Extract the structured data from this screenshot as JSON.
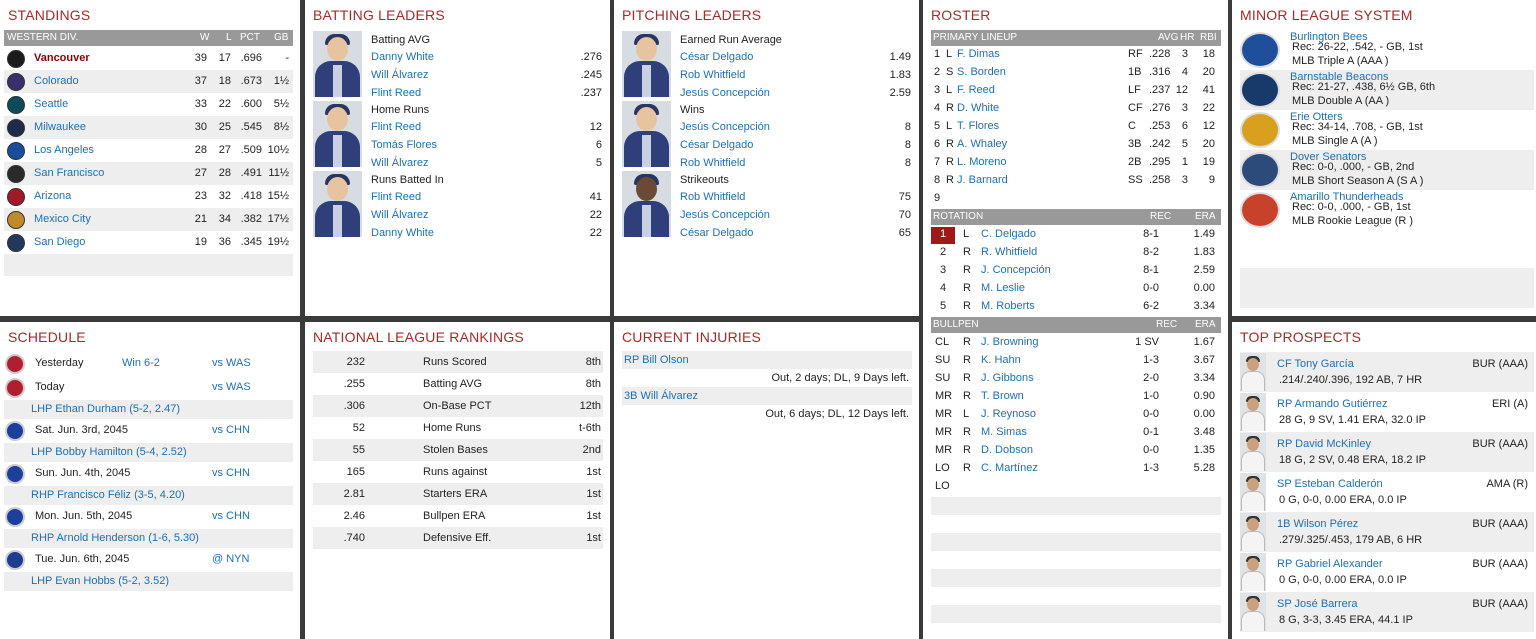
{
  "standings": {
    "title": "STANDINGS",
    "division": "WESTERN DIV.",
    "cols": [
      "W",
      "L",
      "PCT",
      "GB"
    ],
    "rows": [
      {
        "team": "Vancouver",
        "w": "39",
        "l": "17",
        "pct": ".696",
        "gb": "-",
        "logo": "vancouver-logo",
        "color": "#1b1b1b"
      },
      {
        "team": "Colorado",
        "w": "37",
        "l": "18",
        "pct": ".673",
        "gb": "1½",
        "logo": "colorado-logo",
        "color": "#3a2e6b"
      },
      {
        "team": "Seattle",
        "w": "33",
        "l": "22",
        "pct": ".600",
        "gb": "5½",
        "logo": "seattle-logo",
        "color": "#0b4b5c"
      },
      {
        "team": "Milwaukee",
        "w": "30",
        "l": "25",
        "pct": ".545",
        "gb": "8½",
        "logo": "milwaukee-logo",
        "color": "#1d2a4a"
      },
      {
        "team": "Los Angeles",
        "w": "28",
        "l": "27",
        "pct": ".509",
        "gb": "10½",
        "logo": "los-angeles-logo",
        "color": "#1a4d9c"
      },
      {
        "team": "San Francisco",
        "w": "27",
        "l": "28",
        "pct": ".491",
        "gb": "11½",
        "logo": "san-francisco-logo",
        "color": "#2a2a2a"
      },
      {
        "team": "Arizona",
        "w": "23",
        "l": "32",
        "pct": ".418",
        "gb": "15½",
        "logo": "arizona-logo",
        "color": "#a3182b"
      },
      {
        "team": "Mexico City",
        "w": "21",
        "l": "34",
        "pct": ".382",
        "gb": "17½",
        "logo": "mexico-city-logo",
        "color": "#c08a2a"
      },
      {
        "team": "San Diego",
        "w": "19",
        "l": "36",
        "pct": ".345",
        "gb": "19½",
        "logo": "san-diego-logo",
        "color": "#24375e"
      }
    ]
  },
  "batting": {
    "title": "BATTING LEADERS",
    "groups": [
      {
        "label": "Batting AVG",
        "rows": [
          {
            "name": "Danny White",
            "val": ".276"
          },
          {
            "name": "Will Álvarez",
            "val": ".245"
          },
          {
            "name": "Flint Reed",
            "val": ".237"
          }
        ]
      },
      {
        "label": "Home Runs",
        "rows": [
          {
            "name": "Flint Reed",
            "val": "12"
          },
          {
            "name": "Tomás Flores",
            "val": "6"
          },
          {
            "name": "Will Álvarez",
            "val": "5"
          }
        ]
      },
      {
        "label": "Runs Batted In",
        "rows": [
          {
            "name": "Flint Reed",
            "val": "41"
          },
          {
            "name": "Will Álvarez",
            "val": "22"
          },
          {
            "name": "Danny White",
            "val": "22"
          }
        ]
      }
    ]
  },
  "pitching": {
    "title": "PITCHING LEADERS",
    "groups": [
      {
        "label": "Earned Run Average",
        "rows": [
          {
            "name": "César Delgado",
            "val": "1.49"
          },
          {
            "name": "Rob Whitfield",
            "val": "1.83"
          },
          {
            "name": "Jesús Concepción",
            "val": "2.59"
          }
        ]
      },
      {
        "label": "Wins",
        "rows": [
          {
            "name": "Jesús Concepción",
            "val": "8"
          },
          {
            "name": "César Delgado",
            "val": "8"
          },
          {
            "name": "Rob Whitfield",
            "val": "8"
          }
        ]
      },
      {
        "label": "Strikeouts",
        "rows": [
          {
            "name": "Rob Whitfield",
            "val": "75"
          },
          {
            "name": "Jesús Concepción",
            "val": "70"
          },
          {
            "name": "César Delgado",
            "val": "65"
          }
        ]
      }
    ]
  },
  "roster": {
    "title": "ROSTER",
    "lineup_header": "PRIMARY LINEUP",
    "lineup_cols": [
      "AVG",
      "HR",
      "RBI"
    ],
    "lineup": [
      {
        "n": "1",
        "h": "L",
        "name": "F. Dimas",
        "pos": "RF",
        "avg": ".228",
        "hr": "3",
        "rbi": "18"
      },
      {
        "n": "2",
        "h": "S",
        "name": "S. Borden",
        "pos": "1B",
        "avg": ".316",
        "hr": "4",
        "rbi": "20"
      },
      {
        "n": "3",
        "h": "L",
        "name": "F. Reed",
        "pos": "LF",
        "avg": ".237",
        "hr": "12",
        "rbi": "41"
      },
      {
        "n": "4",
        "h": "R",
        "name": "D. White",
        "pos": "CF",
        "avg": ".276",
        "hr": "3",
        "rbi": "22"
      },
      {
        "n": "5",
        "h": "L",
        "name": "T. Flores",
        "pos": "C",
        "avg": ".253",
        "hr": "6",
        "rbi": "12"
      },
      {
        "n": "6",
        "h": "R",
        "name": "A. Whaley",
        "pos": "3B",
        "avg": ".242",
        "hr": "5",
        "rbi": "20"
      },
      {
        "n": "7",
        "h": "R",
        "name": "L. Moreno",
        "pos": "2B",
        "avg": ".295",
        "hr": "1",
        "rbi": "19"
      },
      {
        "n": "8",
        "h": "R",
        "name": "J. Barnard",
        "pos": "SS",
        "avg": ".258",
        "hr": "3",
        "rbi": "9"
      },
      {
        "n": "9",
        "h": "",
        "name": "",
        "pos": "",
        "avg": "",
        "hr": "",
        "rbi": ""
      }
    ],
    "rotation_header": "ROTATION",
    "rotation_cols": [
      "REC",
      "ERA"
    ],
    "rotation": [
      {
        "n": "1",
        "h": "L",
        "name": "C. Delgado",
        "rec": "8-1",
        "era": "1.49"
      },
      {
        "n": "2",
        "h": "R",
        "name": "R. Whitfield",
        "rec": "8-2",
        "era": "1.83"
      },
      {
        "n": "3",
        "h": "R",
        "name": "J. Concepción",
        "rec": "8-1",
        "era": "2.59"
      },
      {
        "n": "4",
        "h": "R",
        "name": "M. Leslie",
        "rec": "0-0",
        "era": "0.00"
      },
      {
        "n": "5",
        "h": "R",
        "name": "M. Roberts",
        "rec": "6-2",
        "era": "3.34"
      }
    ],
    "bullpen_header": "BULLPEN",
    "bullpen_cols": [
      "REC",
      "ERA"
    ],
    "bullpen": [
      {
        "role": "CL",
        "h": "R",
        "name": "J. Browning",
        "rec": "1 SV",
        "era": "1.67"
      },
      {
        "role": "SU",
        "h": "R",
        "name": "K. Hahn",
        "rec": "1-3",
        "era": "3.67"
      },
      {
        "role": "SU",
        "h": "R",
        "name": "J. Gibbons",
        "rec": "2-0",
        "era": "3.34"
      },
      {
        "role": "MR",
        "h": "R",
        "name": "T. Brown",
        "rec": "1-0",
        "era": "0.90"
      },
      {
        "role": "MR",
        "h": "L",
        "name": "J. Reynoso",
        "rec": "0-0",
        "era": "0.00"
      },
      {
        "role": "MR",
        "h": "R",
        "name": "M. Simas",
        "rec": "0-1",
        "era": "3.48"
      },
      {
        "role": "MR",
        "h": "R",
        "name": "D. Dobson",
        "rec": "0-0",
        "era": "1.35"
      },
      {
        "role": "LO",
        "h": "R",
        "name": "C. Martínez",
        "rec": "1-3",
        "era": "5.28"
      },
      {
        "role": "LO",
        "h": "",
        "name": "",
        "rec": "",
        "era": ""
      }
    ]
  },
  "minors": {
    "title": "MINOR LEAGUE SYSTEM",
    "rows": [
      {
        "team": "Burlington Bees",
        "rec": "Rec: 26-22, .542, - GB, 1st",
        "lvl": "MLB Triple A (AAA )",
        "logo": "burlington-bees-logo",
        "color": "#1f4f9a"
      },
      {
        "team": "Barnstable Beacons",
        "rec": "Rec: 21-27, .438, 6½ GB, 6th",
        "lvl": "MLB Double A (AA )",
        "logo": "barnstable-beacons-logo",
        "color": "#173a6b"
      },
      {
        "team": "Erie Otters",
        "rec": "Rec: 34-14, .708, - GB, 1st",
        "lvl": "MLB Single A (A )",
        "logo": "erie-otters-logo",
        "color": "#d9a020"
      },
      {
        "team": "Dover Senators",
        "rec": "Rec: 0-0, .000, - GB, 2nd",
        "lvl": "MLB Short Season A (S A )",
        "logo": "dover-senators-logo",
        "color": "#2c4a7a"
      },
      {
        "team": "Amarillo Thunderheads",
        "rec": "Rec: 0-0, .000, - GB, 1st",
        "lvl": "MLB Rookie League (R )",
        "logo": "amarillo-thunderheads-logo",
        "color": "#c8412a"
      }
    ]
  },
  "schedule": {
    "title": "SCHEDULE",
    "rows": [
      {
        "date": "Yesterday",
        "result": "Win 6-2",
        "opp": "vs WAS",
        "pitcher": "",
        "logo": "nationals-logo",
        "color": "#b01e2f"
      },
      {
        "date": "Today",
        "result": "",
        "opp": "vs WAS",
        "pitcher": "LHP Ethan Durham (5-2, 2.47)",
        "logo": "nationals-logo",
        "color": "#b01e2f"
      },
      {
        "date": "Sat. Jun. 3rd, 2045",
        "result": "",
        "opp": "vs CHN",
        "pitcher": "LHP Bobby Hamilton (5-4, 2.52)",
        "logo": "cubs-logo",
        "color": "#1b3f9a"
      },
      {
        "date": "Sun. Jun. 4th, 2045",
        "result": "",
        "opp": "vs CHN",
        "pitcher": "RHP Francisco Féliz (3-5, 4.20)",
        "logo": "cubs-logo",
        "color": "#1b3f9a"
      },
      {
        "date": "Mon. Jun. 5th, 2045",
        "result": "",
        "opp": "vs CHN",
        "pitcher": "RHP Arnold Henderson (1-6, 5.30)",
        "logo": "cubs-logo",
        "color": "#1b3f9a"
      },
      {
        "date": "Tue. Jun. 6th, 2045",
        "result": "",
        "opp": "@ NYN",
        "pitcher": "LHP Evan Hobbs (5-2, 3.52)",
        "logo": "mets-logo",
        "color": "#1e3d8f"
      }
    ]
  },
  "rankings": {
    "title": "NATIONAL LEAGUE RANKINGS",
    "rows": [
      {
        "val": "232",
        "stat": "Runs Scored",
        "rank": "8th"
      },
      {
        "val": ".255",
        "stat": "Batting AVG",
        "rank": "8th"
      },
      {
        "val": ".306",
        "stat": "On-Base PCT",
        "rank": "12th"
      },
      {
        "val": "52",
        "stat": "Home Runs",
        "rank": "t-6th"
      },
      {
        "val": "55",
        "stat": "Stolen Bases",
        "rank": "2nd"
      },
      {
        "val": "165",
        "stat": "Runs against",
        "rank": "1st"
      },
      {
        "val": "2.81",
        "stat": "Starters ERA",
        "rank": "1st"
      },
      {
        "val": "2.46",
        "stat": "Bullpen ERA",
        "rank": "1st"
      },
      {
        "val": ".740",
        "stat": "Defensive Eff.",
        "rank": "1st"
      }
    ]
  },
  "injuries": {
    "title": "CURRENT INJURIES",
    "rows": [
      {
        "player": "RP Bill Olson",
        "status": "Out, 2 days; DL, 9 Days left."
      },
      {
        "player": "3B Will Álvarez",
        "status": "Out, 6 days; DL, 12 Days left."
      }
    ]
  },
  "prospects": {
    "title": "TOP PROSPECTS",
    "rows": [
      {
        "name": "CF Tony García",
        "team": "BUR (AAA)",
        "line": ".214/.240/.396, 192 AB, 7 HR"
      },
      {
        "name": "RP Armando Gutiérrez",
        "team": "ERI (A)",
        "line": "28 G, 9 SV, 1.41 ERA, 32.0 IP"
      },
      {
        "name": "RP David McKinley",
        "team": "BUR (AAA)",
        "line": "18 G, 2 SV, 0.48 ERA, 18.2 IP"
      },
      {
        "name": "SP Esteban Calderón",
        "team": "AMA (R)",
        "line": "0 G, 0-0, 0.00 ERA, 0.0 IP"
      },
      {
        "name": "1B Wilson Pérez",
        "team": "BUR (AAA)",
        "line": ".279/.325/.453, 179 AB, 6 HR"
      },
      {
        "name": "RP Gabriel Alexander",
        "team": "BUR (AAA)",
        "line": "0 G, 0-0, 0.00 ERA, 0.0 IP"
      },
      {
        "name": "SP José Barrera",
        "team": "BUR (AAA)",
        "line": "8 G, 3-3, 3.45 ERA, 44.1 IP"
      }
    ]
  }
}
